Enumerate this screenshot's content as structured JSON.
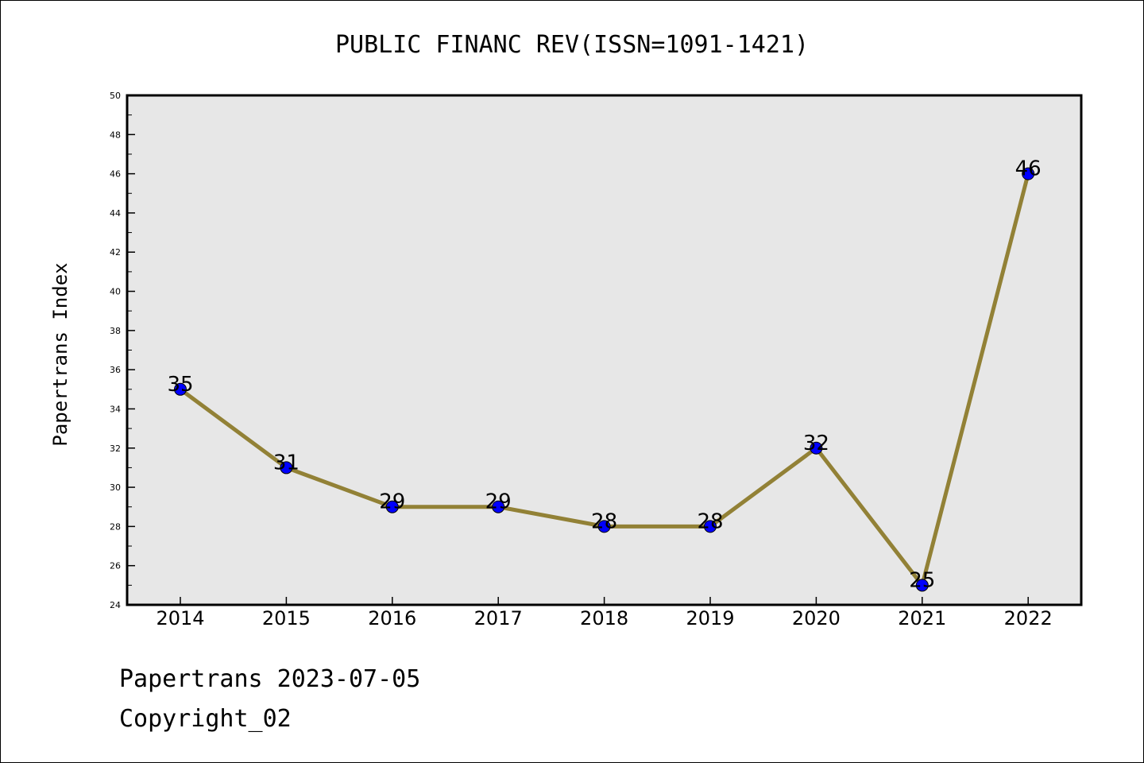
{
  "chart_data": {
    "type": "line",
    "title": "PUBLIC FINANC REV(ISSN=1091-1421)",
    "ylabel": "Papertrans Index",
    "xlabel": "",
    "categories": [
      "2014",
      "2015",
      "2016",
      "2017",
      "2018",
      "2019",
      "2020",
      "2021",
      "2022"
    ],
    "values": [
      35,
      31,
      29,
      29,
      28,
      28,
      32,
      25,
      46
    ],
    "data_labels": [
      "35",
      "31",
      "29",
      "29",
      "28",
      "28",
      "32",
      "25",
      "46"
    ],
    "ylim": [
      24,
      50
    ],
    "y_ticks": [
      "24",
      "26",
      "28",
      "30",
      "32",
      "34",
      "36",
      "38",
      "40",
      "42",
      "44",
      "46",
      "48",
      "50"
    ],
    "grid": false,
    "legend": "none",
    "colors": {
      "line": "#928136",
      "marker": "#0000ff",
      "plot_background": "#e7e7e7"
    }
  },
  "footer": {
    "line1": "Papertrans 2023-07-05",
    "line2": "Copyright_02"
  }
}
